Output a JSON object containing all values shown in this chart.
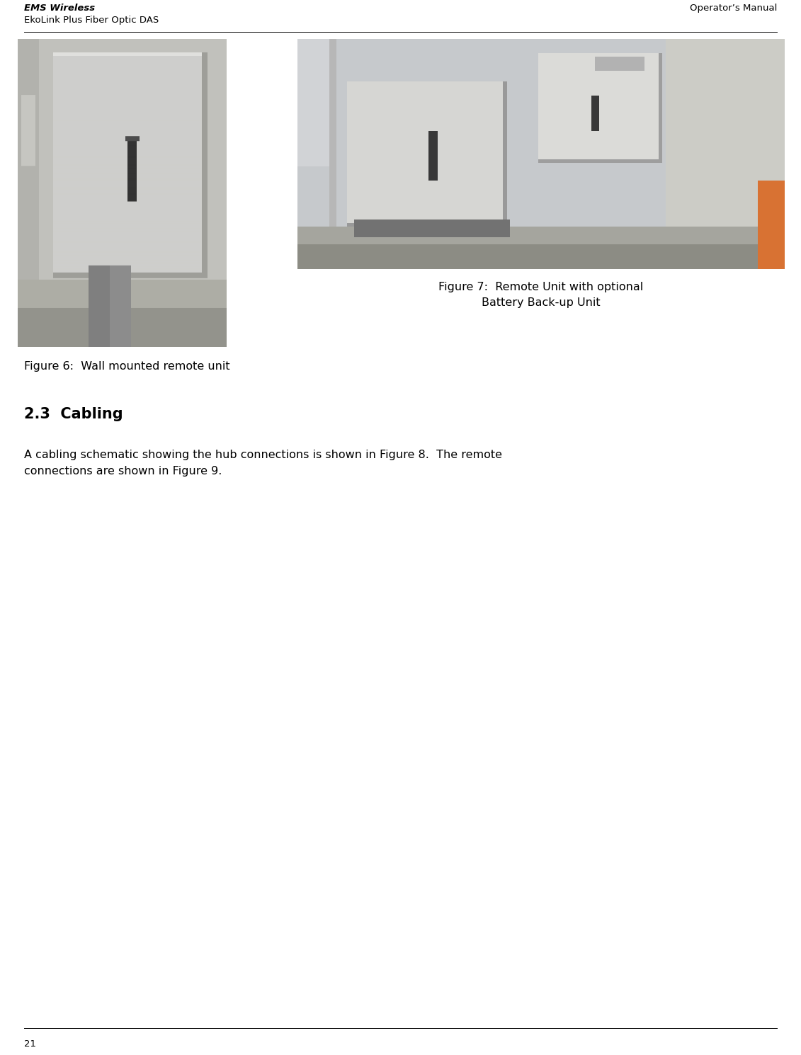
{
  "page_width": 11.31,
  "page_height": 14.9,
  "bg_color": "#ffffff",
  "header_left_bold": "EMS Wireless",
  "header_left_normal": "EkoLink Plus Fiber Optic DAS",
  "header_right": "Operator’s Manual",
  "footer_page_num": "21",
  "fig6_caption": "Figure 6:  Wall mounted remote unit",
  "fig7_caption_line1": "Figure 7:  Remote Unit with optional",
  "fig7_caption_line2": "Battery Back-up Unit",
  "section_heading": "2.3  Cabling",
  "body_text_line1": "A cabling schematic showing the hub connections is shown in Figure 8.  The remote",
  "body_text_line2": "connections are shown in Figure 9.",
  "header_font_size": 9.5,
  "caption_font_size": 11.5,
  "section_font_size": 15,
  "body_font_size": 11.5,
  "footer_font_size": 9.5,
  "line_color": "#000000",
  "text_color": "#000000",
  "img1_gray_bg": 0.75,
  "img2_gray_bg": 0.72
}
